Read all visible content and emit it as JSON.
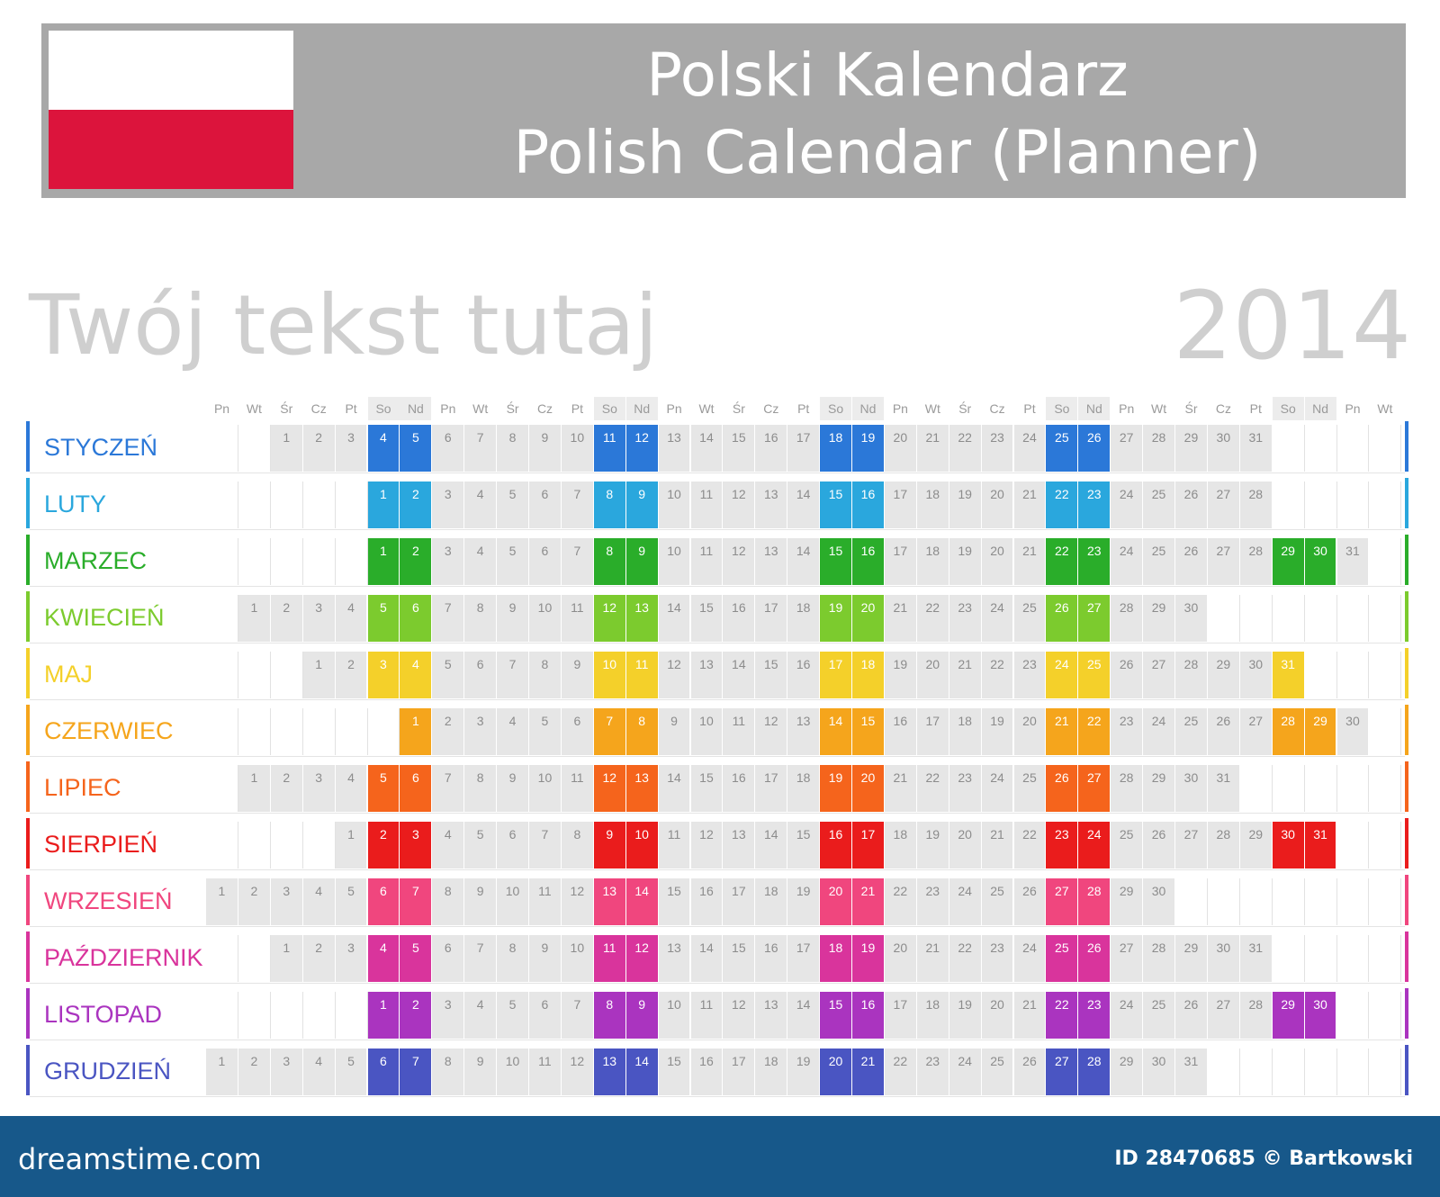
{
  "header": {
    "title_pl": "Polski Kalendarz",
    "title_en": "Polish Calendar (Planner)",
    "flag_colors": [
      "#ffffff",
      "#dc143c"
    ]
  },
  "headline": "Twój tekst tutaj",
  "year": "2014",
  "weekday_labels": [
    "Pn",
    "Wt",
    "Śr",
    "Cz",
    "Pt",
    "So",
    "Nd",
    "Pn",
    "Wt",
    "Śr",
    "Cz",
    "Pt",
    "So",
    "Nd",
    "Pn",
    "Wt",
    "Śr",
    "Cz",
    "Pt",
    "So",
    "Nd",
    "Pn",
    "Wt",
    "Śr",
    "Cz",
    "Pt",
    "So",
    "Nd",
    "Pn",
    "Wt",
    "Śr",
    "Cz",
    "Pt",
    "So",
    "Nd",
    "Pn",
    "Wt"
  ],
  "months": [
    {
      "name": "STYCZEŃ",
      "color": "#2b78d8",
      "start_offset": 2,
      "days": 31
    },
    {
      "name": "LUTY",
      "color": "#2aa7dd",
      "start_offset": 5,
      "days": 28
    },
    {
      "name": "MARZEC",
      "color": "#2aad2a",
      "start_offset": 5,
      "days": 31
    },
    {
      "name": "KWIECIEŃ",
      "color": "#7ccb2e",
      "start_offset": 1,
      "days": 30
    },
    {
      "name": "MAJ",
      "color": "#f4d02a",
      "start_offset": 3,
      "days": 31
    },
    {
      "name": "CZERWIEC",
      "color": "#f5a51c",
      "start_offset": 6,
      "days": 30
    },
    {
      "name": "LIPIEC",
      "color": "#f5641c",
      "start_offset": 1,
      "days": 31
    },
    {
      "name": "SIERPIEŃ",
      "color": "#ea1c1c",
      "start_offset": 4,
      "days": 31
    },
    {
      "name": "WRZESIEŃ",
      "color": "#f0467e",
      "start_offset": 0,
      "days": 30
    },
    {
      "name": "PAŹDZIERNIK",
      "color": "#d9349c",
      "start_offset": 2,
      "days": 31
    },
    {
      "name": "LISTOPAD",
      "color": "#aa34bf",
      "start_offset": 5,
      "days": 30
    },
    {
      "name": "GRUDZIEŃ",
      "color": "#4a55c2",
      "start_offset": 0,
      "days": 31
    }
  ],
  "colors": {
    "weekday_cell": "#e6e6e6",
    "header_banner": "#a8a8a8",
    "footer": "#17588a"
  },
  "footer": {
    "logo": "dreamstime.com",
    "credit": "ID 28470685 © Bartkowski"
  }
}
